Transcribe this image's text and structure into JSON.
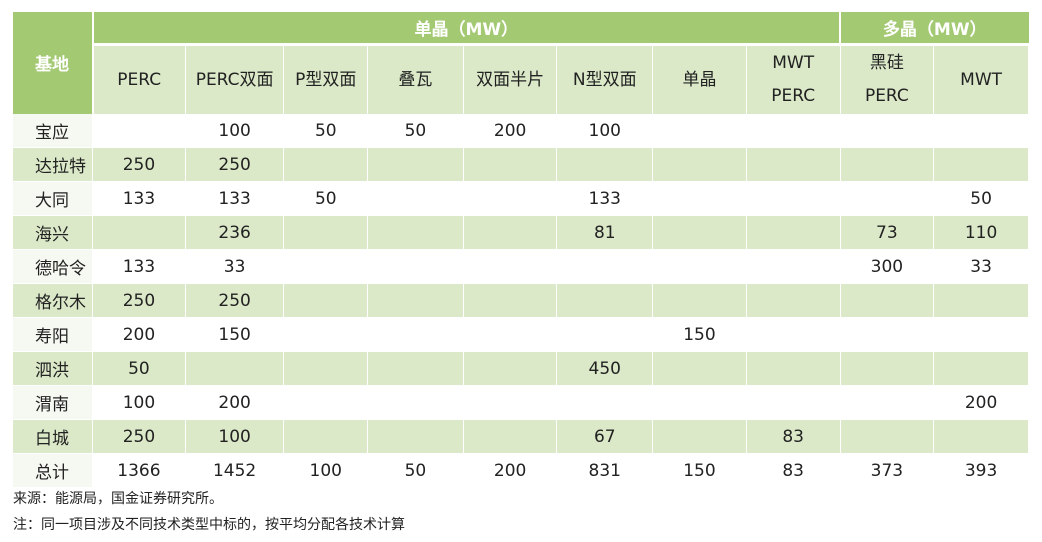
{
  "table": {
    "base_label": "基地",
    "groups": [
      {
        "label": "单晶（MW）"
      },
      {
        "label": "多晶（MW）"
      }
    ],
    "subheaders": [
      {
        "line1": "PERC",
        "line2": ""
      },
      {
        "line1": "PERC双面",
        "line2": ""
      },
      {
        "line1": "P型双面",
        "line2": ""
      },
      {
        "line1": "叠瓦",
        "line2": ""
      },
      {
        "line1": "双面半片",
        "line2": ""
      },
      {
        "line1": "N型双面",
        "line2": ""
      },
      {
        "line1": "单晶",
        "line2": ""
      },
      {
        "line1": "MWT",
        "line2": "PERC"
      },
      {
        "line1": "黑硅",
        "line2": "PERC"
      },
      {
        "line1": "MWT",
        "line2": ""
      }
    ],
    "rows": [
      {
        "name": "宝应",
        "cells": [
          "",
          "100",
          "50",
          "50",
          "200",
          "100",
          "",
          "",
          "",
          ""
        ]
      },
      {
        "name": "达拉特",
        "cells": [
          "250",
          "250",
          "",
          "",
          "",
          "",
          "",
          "",
          "",
          ""
        ]
      },
      {
        "name": "大同",
        "cells": [
          "133",
          "133",
          "50",
          "",
          "",
          "133",
          "",
          "",
          "",
          "50"
        ]
      },
      {
        "name": "海兴",
        "cells": [
          "",
          "236",
          "",
          "",
          "",
          "81",
          "",
          "",
          "73",
          "110"
        ]
      },
      {
        "name": "德哈令",
        "cells": [
          "133",
          "33",
          "",
          "",
          "",
          "",
          "",
          "",
          "300",
          "33"
        ]
      },
      {
        "name": "格尔木",
        "cells": [
          "250",
          "250",
          "",
          "",
          "",
          "",
          "",
          "",
          "",
          ""
        ]
      },
      {
        "name": "寿阳",
        "cells": [
          "200",
          "150",
          "",
          "",
          "",
          "",
          "150",
          "",
          "",
          ""
        ]
      },
      {
        "name": "泗洪",
        "cells": [
          "50",
          "",
          "",
          "",
          "",
          "450",
          "",
          "",
          "",
          ""
        ]
      },
      {
        "name": "渭南",
        "cells": [
          "100",
          "200",
          "",
          "",
          "",
          "",
          "",
          "",
          "",
          "200"
        ]
      },
      {
        "name": "白城",
        "cells": [
          "250",
          "100",
          "",
          "",
          "",
          "67",
          "",
          "83",
          "",
          ""
        ]
      },
      {
        "name": "总计",
        "cells": [
          "1366",
          "1452",
          "100",
          "50",
          "200",
          "831",
          "150",
          "83",
          "373",
          "393"
        ]
      }
    ]
  },
  "notes": {
    "source": "来源：能源局，国金证券研究所。",
    "remark": "注：同一项目涉及不同技术类型中标的，按平均分配各技术计算"
  }
}
